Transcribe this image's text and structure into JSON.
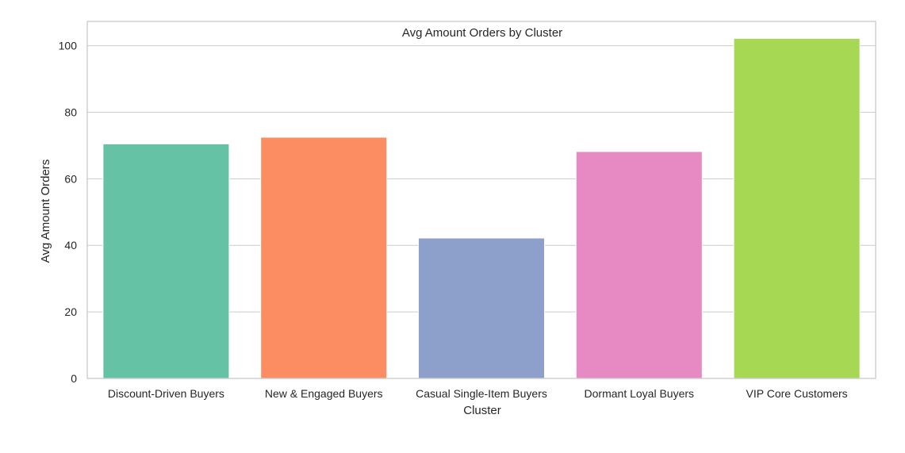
{
  "chart_data": {
    "type": "bar",
    "title": "Avg Amount Orders by Cluster",
    "xlabel": "Cluster",
    "ylabel": "Avg Amount Orders",
    "categories": [
      "Discount-Driven Buyers",
      "New & Engaged Buyers",
      "Casual Single-Item Buyers",
      "Dormant Loyal Buyers",
      "VIP Core Customers"
    ],
    "values": [
      70.5,
      72.5,
      42.2,
      68.2,
      102.2
    ],
    "colors": [
      "#66c2a5",
      "#fc8d62",
      "#8da0cb",
      "#e78ac3",
      "#a6d854"
    ],
    "ylim": [
      0,
      107.3
    ],
    "yticks": [
      0,
      20,
      40,
      60,
      80,
      100
    ],
    "grid": true,
    "legend": "none"
  }
}
